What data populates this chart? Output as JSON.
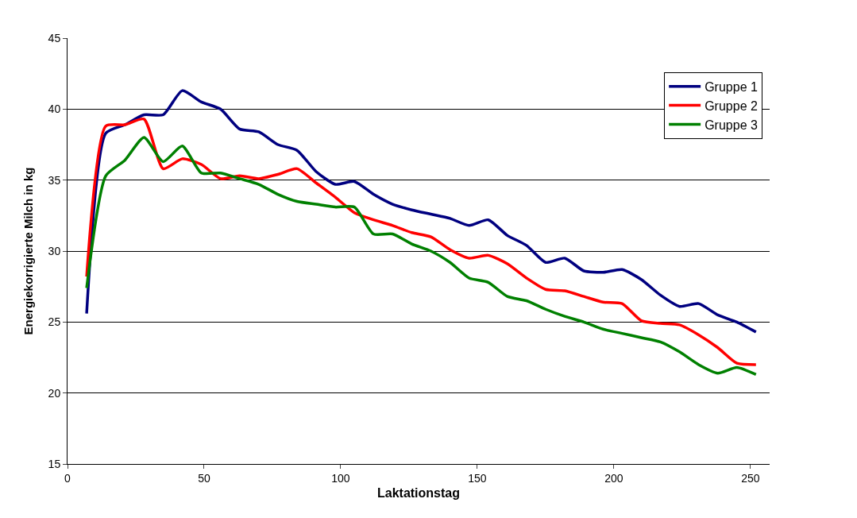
{
  "chart_data": {
    "type": "line",
    "xlabel": "Laktationstag",
    "ylabel": "Energiekorrigierte Milch in kg",
    "x": [
      7,
      14,
      21,
      28,
      35,
      42,
      49,
      56,
      63,
      70,
      77,
      84,
      91,
      98,
      105,
      112,
      119,
      126,
      133,
      140,
      147,
      154,
      161,
      168,
      175,
      182,
      189,
      196,
      203,
      210,
      217,
      224,
      231,
      238,
      245,
      252
    ],
    "series": [
      {
        "name": "Gruppe 1",
        "color": "#000080",
        "values": [
          25.6,
          38.3,
          38.9,
          39.6,
          39.6,
          41.3,
          40.5,
          40.0,
          38.6,
          38.4,
          37.5,
          37.1,
          35.6,
          34.7,
          34.9,
          34.0,
          33.3,
          32.9,
          32.6,
          32.3,
          31.8,
          32.2,
          31.1,
          30.4,
          29.2,
          29.5,
          28.6,
          28.5,
          28.7,
          28.0,
          26.9,
          26.1,
          26.3,
          25.5,
          25.0,
          24.3
        ]
      },
      {
        "name": "Gruppe 2",
        "color": "#ff0000",
        "values": [
          28.2,
          38.8,
          38.9,
          39.3,
          35.8,
          36.5,
          36.1,
          35.1,
          35.3,
          35.1,
          35.4,
          35.8,
          34.8,
          33.8,
          32.7,
          32.2,
          31.8,
          31.3,
          31.0,
          30.1,
          29.5,
          29.7,
          29.1,
          28.1,
          27.3,
          27.2,
          26.8,
          26.4,
          26.3,
          25.1,
          24.9,
          24.8,
          24.1,
          23.2,
          22.1,
          22.0
        ]
      },
      {
        "name": "Gruppe 3",
        "color": "#008000",
        "values": [
          27.4,
          35.3,
          36.4,
          38.0,
          36.3,
          37.4,
          35.5,
          35.5,
          35.1,
          34.7,
          34.0,
          33.5,
          33.3,
          33.1,
          33.1,
          31.2,
          31.2,
          30.5,
          30.0,
          29.2,
          28.1,
          27.8,
          26.8,
          26.5,
          25.9,
          25.4,
          25.0,
          24.5,
          24.2,
          23.9,
          23.6,
          22.9,
          22.0,
          21.4,
          21.8,
          21.3
        ]
      }
    ],
    "xlim": [
      0,
      257
    ],
    "xticks": [
      0,
      50,
      100,
      150,
      200,
      250
    ],
    "ylim": [
      15,
      45
    ],
    "yticks": [
      15,
      20,
      25,
      30,
      35,
      40,
      45
    ],
    "grid": "y",
    "legend": "top right",
    "marker": "none",
    "line_style": "solid"
  }
}
